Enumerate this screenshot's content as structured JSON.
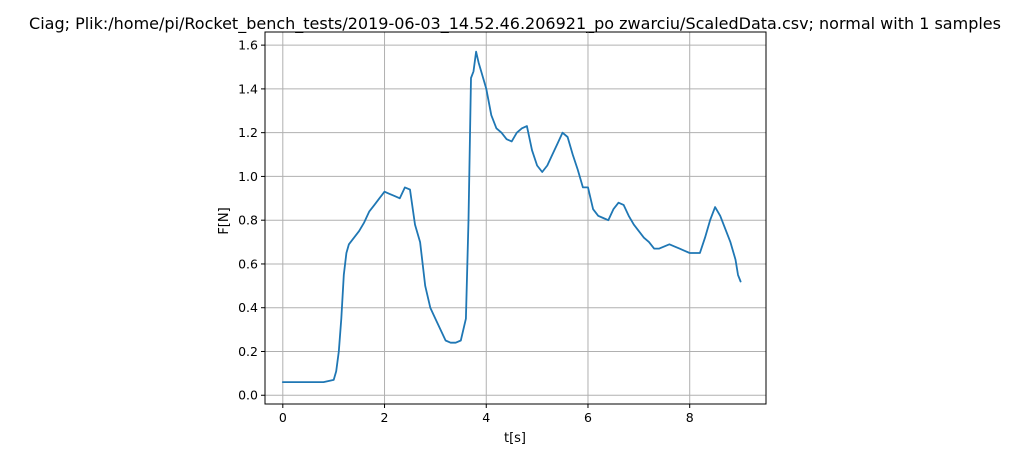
{
  "chart_data": {
    "type": "line",
    "title": "Ciag; Plik:/home/pi/Rocket_bench_tests/2019-06-03_14.52.46.206921_po zwarciu/ScaledData.csv; normal with 1 samples",
    "xlabel": "t[s]",
    "ylabel": "F[N]",
    "xlim": [
      -0.35,
      9.5
    ],
    "ylim": [
      -0.04,
      1.66
    ],
    "xticks": [
      0,
      2,
      4,
      6,
      8
    ],
    "yticks": [
      0.0,
      0.2,
      0.4,
      0.6,
      0.8,
      1.0,
      1.2,
      1.4,
      1.6
    ],
    "xtick_labels": [
      "0",
      "2",
      "4",
      "6",
      "8"
    ],
    "ytick_labels": [
      "0.0",
      "0.2",
      "0.4",
      "0.6",
      "0.8",
      "1.0",
      "1.2",
      "1.4",
      "1.6"
    ],
    "grid": true,
    "color": "#1f77b4",
    "series": [
      {
        "x": [
          0.0,
          0.1,
          0.2,
          0.3,
          0.4,
          0.5,
          0.6,
          0.7,
          0.8,
          0.9,
          1.0,
          1.05,
          1.1,
          1.15,
          1.2,
          1.25,
          1.3,
          1.4,
          1.5,
          1.6,
          1.7,
          1.8,
          1.9,
          2.0,
          2.1,
          2.2,
          2.3,
          2.4,
          2.5,
          2.6,
          2.7,
          2.8,
          2.9,
          3.0,
          3.1,
          3.2,
          3.3,
          3.4,
          3.5,
          3.6,
          3.65,
          3.7,
          3.75,
          3.8,
          3.85,
          3.9,
          4.0,
          4.1,
          4.2,
          4.3,
          4.4,
          4.5,
          4.6,
          4.7,
          4.8,
          4.9,
          5.0,
          5.1,
          5.2,
          5.3,
          5.4,
          5.5,
          5.6,
          5.7,
          5.8,
          5.9,
          6.0,
          6.1,
          6.2,
          6.3,
          6.4,
          6.5,
          6.6,
          6.7,
          6.8,
          6.9,
          7.0,
          7.1,
          7.2,
          7.3,
          7.4,
          7.5,
          7.6,
          7.7,
          7.8,
          7.9,
          8.0,
          8.1,
          8.2,
          8.3,
          8.4,
          8.5,
          8.6,
          8.7,
          8.8,
          8.9,
          8.95,
          9.0
        ],
        "values": [
          0.06,
          0.06,
          0.06,
          0.06,
          0.06,
          0.06,
          0.06,
          0.06,
          0.06,
          0.065,
          0.07,
          0.11,
          0.2,
          0.35,
          0.55,
          0.65,
          0.69,
          0.72,
          0.75,
          0.79,
          0.84,
          0.87,
          0.9,
          0.93,
          0.92,
          0.91,
          0.9,
          0.95,
          0.94,
          0.78,
          0.7,
          0.5,
          0.4,
          0.35,
          0.3,
          0.25,
          0.24,
          0.24,
          0.25,
          0.35,
          0.8,
          1.45,
          1.48,
          1.57,
          1.52,
          1.48,
          1.4,
          1.28,
          1.22,
          1.2,
          1.17,
          1.16,
          1.2,
          1.22,
          1.23,
          1.12,
          1.05,
          1.02,
          1.05,
          1.1,
          1.15,
          1.2,
          1.18,
          1.1,
          1.03,
          0.95,
          0.95,
          0.85,
          0.82,
          0.81,
          0.8,
          0.85,
          0.88,
          0.87,
          0.82,
          0.78,
          0.75,
          0.72,
          0.7,
          0.67,
          0.67,
          0.68,
          0.69,
          0.68,
          0.67,
          0.66,
          0.65,
          0.65,
          0.65,
          0.72,
          0.8,
          0.86,
          0.82,
          0.76,
          0.7,
          0.62,
          0.55,
          0.52
        ]
      }
    ]
  }
}
